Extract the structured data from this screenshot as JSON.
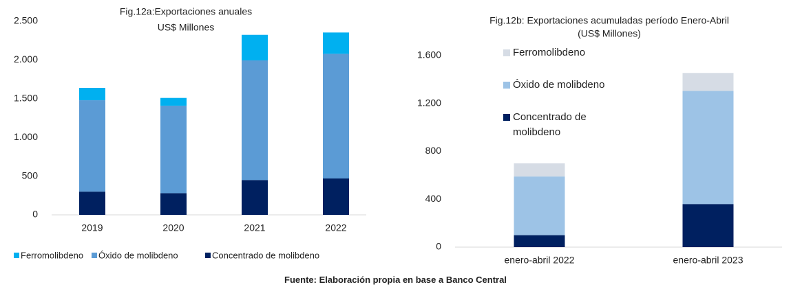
{
  "chart_data": [
    {
      "type": "stacked_bar",
      "title": "Fig.12a:Exportaciones anuales",
      "subtitle": "US$ Millones",
      "categories": [
        "2019",
        "2020",
        "2021",
        "2022"
      ],
      "series": [
        {
          "name": "Ferromolibdeno",
          "color": "#00b0f0",
          "values": [
            160,
            100,
            330,
            275
          ]
        },
        {
          "name": "Óxido de molibdeno",
          "color": "#5b9bd5",
          "values": [
            1180,
            1130,
            1545,
            1610
          ]
        },
        {
          "name": "Concentrado de molibdeno",
          "color": "#002060",
          "values": [
            300,
            280,
            450,
            470
          ]
        }
      ],
      "ylim": [
        0,
        2500
      ],
      "yticks": [
        0,
        500,
        {
          "value": 1000,
          "label": "1.000"
        },
        {
          "value": 1500,
          "label": "1.500"
        },
        {
          "value": 2000,
          "label": "2.000"
        },
        {
          "value": 2500,
          "label": "2.500"
        }
      ],
      "legend": "bottom"
    },
    {
      "type": "stacked_bar",
      "title": "Fig.12b: Exportaciones acumuladas período Enero-Abril",
      "subtitle": "(US$ Millones)",
      "categories": [
        "enero-abril 2022",
        "enero-abril 2023"
      ],
      "series": [
        {
          "name": "Ferromolibdeno",
          "color": "#d6dce5",
          "values": [
            110,
            150
          ]
        },
        {
          "name": "Óxido de molibdeno",
          "color": "#9dc3e6",
          "values": [
            490,
            945
          ]
        },
        {
          "name": "Concentrado de molibdeno",
          "color": "#002060",
          "values": [
            100,
            360
          ]
        }
      ],
      "ylim": [
        0,
        1600
      ],
      "yticks": [
        0,
        400,
        800,
        {
          "value": 1200,
          "label": "1.200"
        },
        {
          "value": 1600,
          "label": "1.600"
        }
      ],
      "legend": "left"
    }
  ],
  "footer": "Fuente: Elaboración propia en base a Banco Central"
}
